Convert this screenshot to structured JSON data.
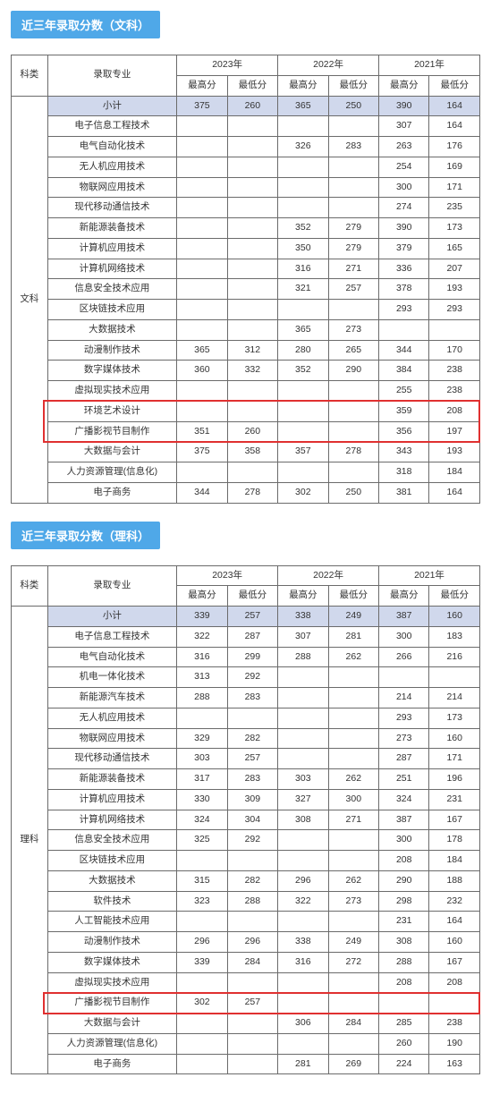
{
  "colors": {
    "header_bg": "#4fa8e8",
    "header_text": "#ffffff",
    "border": "#6b6b6b",
    "subtotal_bg": "#d0d8ec",
    "highlight_border": "#e03030",
    "text": "#333333",
    "page_bg": "#ffffff"
  },
  "typography": {
    "header_fontsize": 13,
    "cell_fontsize": 10.5,
    "font_family": "Microsoft YaHei"
  },
  "headers": {
    "category": "科类",
    "major": "录取专业",
    "years": [
      "2023年",
      "2022年",
      "2021年"
    ],
    "max_score": "最高分",
    "min_score": "最低分"
  },
  "sections": [
    {
      "title": "近三年录取分数（文科）",
      "category_label": "文科",
      "subtotal_label": "小计",
      "subtotal": [
        "375",
        "260",
        "365",
        "250",
        "390",
        "164"
      ],
      "rows": [
        {
          "major": "电子信息工程技术",
          "scores": [
            "",
            "",
            "",
            "",
            "307",
            "164"
          ]
        },
        {
          "major": "电气自动化技术",
          "scores": [
            "",
            "",
            "326",
            "283",
            "263",
            "176"
          ]
        },
        {
          "major": "无人机应用技术",
          "scores": [
            "",
            "",
            "",
            "",
            "254",
            "169"
          ]
        },
        {
          "major": "物联网应用技术",
          "scores": [
            "",
            "",
            "",
            "",
            "300",
            "171"
          ]
        },
        {
          "major": "现代移动通信技术",
          "scores": [
            "",
            "",
            "",
            "",
            "274",
            "235"
          ]
        },
        {
          "major": "新能源装备技术",
          "scores": [
            "",
            "",
            "352",
            "279",
            "390",
            "173"
          ]
        },
        {
          "major": "计算机应用技术",
          "scores": [
            "",
            "",
            "350",
            "279",
            "379",
            "165"
          ]
        },
        {
          "major": "计算机网络技术",
          "scores": [
            "",
            "",
            "316",
            "271",
            "336",
            "207"
          ]
        },
        {
          "major": "信息安全技术应用",
          "scores": [
            "",
            "",
            "321",
            "257",
            "378",
            "193"
          ]
        },
        {
          "major": "区块链技术应用",
          "scores": [
            "",
            "",
            "",
            "",
            "293",
            "293"
          ]
        },
        {
          "major": "大数据技术",
          "scores": [
            "",
            "",
            "365",
            "273",
            "",
            ""
          ]
        },
        {
          "major": "动漫制作技术",
          "scores": [
            "365",
            "312",
            "280",
            "265",
            "344",
            "170"
          ]
        },
        {
          "major": "数字媒体技术",
          "scores": [
            "360",
            "332",
            "352",
            "290",
            "384",
            "238"
          ]
        },
        {
          "major": "虚拟现实技术应用",
          "scores": [
            "",
            "",
            "",
            "",
            "255",
            "238"
          ]
        },
        {
          "major": "环境艺术设计",
          "scores": [
            "",
            "",
            "",
            "",
            "359",
            "208"
          ],
          "hl": true
        },
        {
          "major": "广播影视节目制作",
          "scores": [
            "351",
            "260",
            "",
            "",
            "356",
            "197"
          ],
          "hl": true
        },
        {
          "major": "大数据与会计",
          "scores": [
            "375",
            "358",
            "357",
            "278",
            "343",
            "193"
          ]
        },
        {
          "major": "人力资源管理(信息化)",
          "scores": [
            "",
            "",
            "",
            "",
            "318",
            "184"
          ]
        },
        {
          "major": "电子商务",
          "scores": [
            "344",
            "278",
            "302",
            "250",
            "381",
            "164"
          ]
        }
      ],
      "highlight_range": [
        14,
        15
      ]
    },
    {
      "title": "近三年录取分数（理科）",
      "category_label": "理科",
      "subtotal_label": "小计",
      "subtotal": [
        "339",
        "257",
        "338",
        "249",
        "387",
        "160"
      ],
      "rows": [
        {
          "major": "电子信息工程技术",
          "scores": [
            "322",
            "287",
            "307",
            "281",
            "300",
            "183"
          ]
        },
        {
          "major": "电气自动化技术",
          "scores": [
            "316",
            "299",
            "288",
            "262",
            "266",
            "216"
          ]
        },
        {
          "major": "机电一体化技术",
          "scores": [
            "313",
            "292",
            "",
            "",
            "",
            ""
          ]
        },
        {
          "major": "新能源汽车技术",
          "scores": [
            "288",
            "283",
            "",
            "",
            "214",
            "214"
          ]
        },
        {
          "major": "无人机应用技术",
          "scores": [
            "",
            "",
            "",
            "",
            "293",
            "173"
          ]
        },
        {
          "major": "物联网应用技术",
          "scores": [
            "329",
            "282",
            "",
            "",
            "273",
            "160"
          ]
        },
        {
          "major": "现代移动通信技术",
          "scores": [
            "303",
            "257",
            "",
            "",
            "287",
            "171"
          ]
        },
        {
          "major": "新能源装备技术",
          "scores": [
            "317",
            "283",
            "303",
            "262",
            "251",
            "196"
          ]
        },
        {
          "major": "计算机应用技术",
          "scores": [
            "330",
            "309",
            "327",
            "300",
            "324",
            "231"
          ]
        },
        {
          "major": "计算机网络技术",
          "scores": [
            "324",
            "304",
            "308",
            "271",
            "387",
            "167"
          ]
        },
        {
          "major": "信息安全技术应用",
          "scores": [
            "325",
            "292",
            "",
            "",
            "300",
            "178"
          ]
        },
        {
          "major": "区块链技术应用",
          "scores": [
            "",
            "",
            "",
            "",
            "208",
            "184"
          ]
        },
        {
          "major": "大数据技术",
          "scores": [
            "315",
            "282",
            "296",
            "262",
            "290",
            "188"
          ]
        },
        {
          "major": "软件技术",
          "scores": [
            "323",
            "288",
            "322",
            "273",
            "298",
            "232"
          ]
        },
        {
          "major": "人工智能技术应用",
          "scores": [
            "",
            "",
            "",
            "",
            "231",
            "164"
          ]
        },
        {
          "major": "动漫制作技术",
          "scores": [
            "296",
            "296",
            "338",
            "249",
            "308",
            "160"
          ]
        },
        {
          "major": "数字媒体技术",
          "scores": [
            "339",
            "284",
            "316",
            "272",
            "288",
            "167"
          ]
        },
        {
          "major": "虚拟现实技术应用",
          "scores": [
            "",
            "",
            "",
            "",
            "208",
            "208"
          ]
        },
        {
          "major": "广播影视节目制作",
          "scores": [
            "302",
            "257",
            "",
            "",
            "",
            ""
          ],
          "hl": true
        },
        {
          "major": "大数据与会计",
          "scores": [
            "",
            "",
            "306",
            "284",
            "285",
            "238"
          ]
        },
        {
          "major": "人力资源管理(信息化)",
          "scores": [
            "",
            "",
            "",
            "",
            "260",
            "190"
          ]
        },
        {
          "major": "电子商务",
          "scores": [
            "",
            "",
            "281",
            "269",
            "224",
            "163"
          ]
        }
      ],
      "highlight_range": [
        18,
        18
      ]
    }
  ]
}
